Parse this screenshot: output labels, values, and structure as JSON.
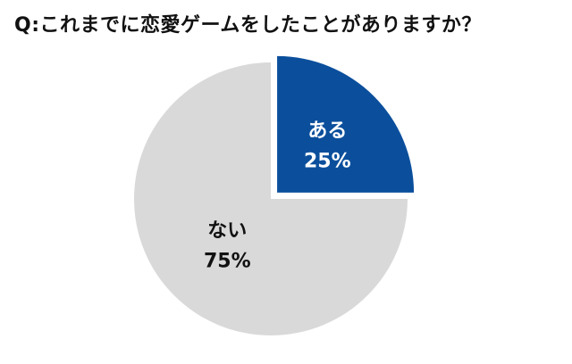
{
  "question": "Q:これまでに恋愛ゲームをしたことがありますか？",
  "chart_data": {
    "type": "pie",
    "title": "Q:これまでに恋愛ゲームをしたことがありますか？",
    "slices": [
      {
        "label": "ある",
        "value": 25,
        "value_label": "25%",
        "color": "#0b4f9c",
        "text_color": "#ffffff",
        "exploded": true
      },
      {
        "label": "ない",
        "value": 75,
        "value_label": "75%",
        "color": "#d9d9d9",
        "text_color": "#111111",
        "exploded": false
      }
    ],
    "legend": "none"
  }
}
